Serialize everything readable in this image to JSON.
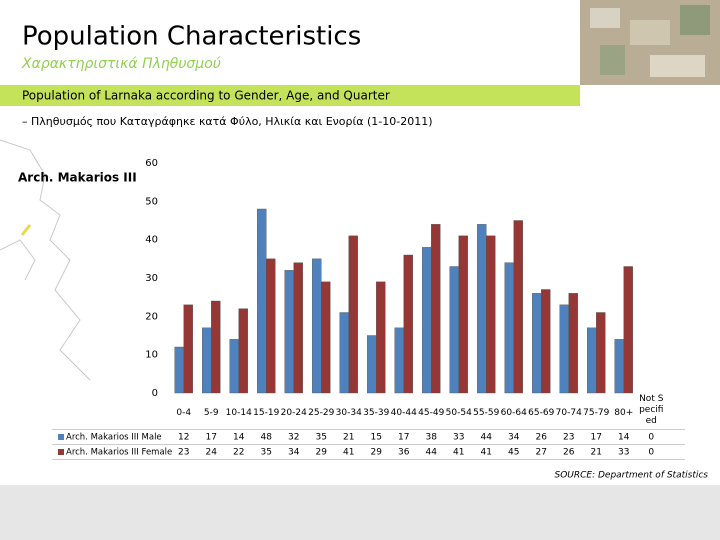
{
  "slide": {
    "title": "Population Characteristics",
    "subtitle": "Χαρακτηριστικά Πληθυσμού",
    "banner": "Population of Larnaka according to Gender, Age, and Quarter",
    "heading": "– Πληθυσμός που Καταγράφηκε κατά Φύλο, Ηλικία και Ενορία (1-10-2011)",
    "map_label": "Arch. Makarios III",
    "source": "SOURCE: Department of Statistics"
  },
  "chart_data": {
    "type": "bar",
    "categories": [
      "0-4",
      "5-9",
      "10-14",
      "15-19",
      "20-24",
      "25-29",
      "30-34",
      "35-39",
      "40-44",
      "45-49",
      "50-54",
      "55-59",
      "60-64",
      "65-69",
      "70-74",
      "75-79",
      "80+",
      "Not Specified"
    ],
    "series": [
      {
        "name": "Arch. Makarios III Male",
        "color": "#4f81bd",
        "values": [
          12,
          17,
          14,
          48,
          32,
          35,
          21,
          15,
          17,
          38,
          33,
          44,
          34,
          26,
          23,
          17,
          14,
          0
        ]
      },
      {
        "name": "Arch. Makarios III Female",
        "color": "#953735",
        "values": [
          23,
          24,
          22,
          35,
          34,
          29,
          41,
          29,
          36,
          44,
          41,
          41,
          45,
          27,
          26,
          21,
          33,
          0
        ]
      }
    ],
    "ylim": [
      0,
      60
    ],
    "yticks": [
      0,
      10,
      20,
      30,
      40,
      50,
      60
    ],
    "grid": false
  }
}
